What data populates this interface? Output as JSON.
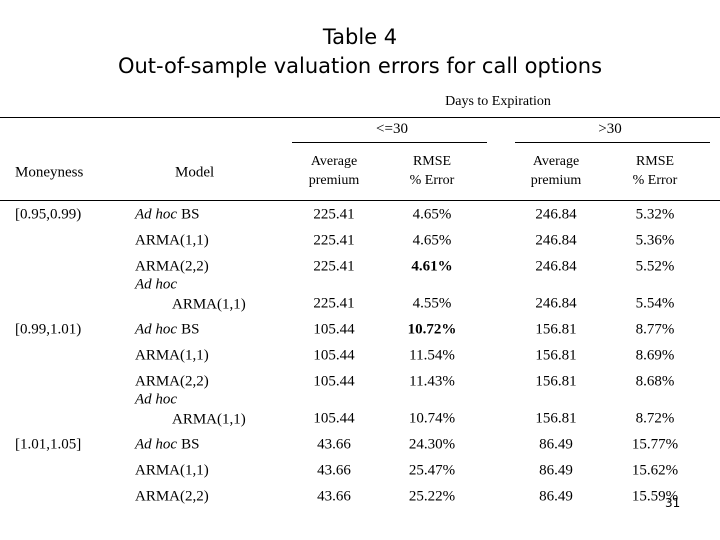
{
  "title": {
    "line1": "Table 4",
    "line2": "Out-of-sample valuation errors for call options"
  },
  "table": {
    "super_header": "Days to Expiration",
    "groups": [
      "<=30",
      ">30"
    ],
    "columns": {
      "moneyness": "Moneyness",
      "model": "Model",
      "metrics": [
        {
          "line1": "Average",
          "line2": "premium"
        },
        {
          "line1": "RMSE",
          "line2": "% Error"
        },
        {
          "line1": "Average",
          "line2": "premium"
        },
        {
          "line1": "RMSE",
          "line2": "% Error"
        }
      ]
    },
    "rows": [
      {
        "moneyness": "[0.95,0.99)",
        "model": {
          "italic": "Ad hoc",
          "text": "BS"
        },
        "cells": [
          {
            "text": "225.41"
          },
          {
            "text": "4.65%"
          },
          {
            "text": "246.84"
          },
          {
            "text": "5.32%"
          }
        ]
      },
      {
        "model": {
          "text": "ARMA(1,1)"
        },
        "cells": [
          {
            "text": "225.41"
          },
          {
            "text": "4.65%"
          },
          {
            "text": "246.84"
          },
          {
            "text": "5.36%"
          }
        ]
      },
      {
        "model": {
          "text": "ARMA(2,2)"
        },
        "cells": [
          {
            "text": "225.41"
          },
          {
            "text": "4.61%",
            "bold": true
          },
          {
            "text": "246.84"
          },
          {
            "text": "5.52%"
          }
        ]
      },
      {
        "model": {
          "italic": "Ad hoc",
          "text": "ARMA(1,1)",
          "wrap": true
        },
        "cells": [
          {
            "text": "225.41"
          },
          {
            "text": "4.55%"
          },
          {
            "text": "246.84"
          },
          {
            "text": "5.54%"
          }
        ]
      },
      {
        "moneyness": "[0.99,1.01)",
        "model": {
          "italic": "Ad hoc",
          "text": "BS"
        },
        "cells": [
          {
            "text": "105.44"
          },
          {
            "text": "10.72%",
            "bold": true
          },
          {
            "text": "156.81"
          },
          {
            "text": "8.77%"
          }
        ]
      },
      {
        "model": {
          "text": "ARMA(1,1)"
        },
        "cells": [
          {
            "text": "105.44"
          },
          {
            "text": "11.54%"
          },
          {
            "text": "156.81"
          },
          {
            "text": "8.69%"
          }
        ]
      },
      {
        "model": {
          "text": "ARMA(2,2)"
        },
        "cells": [
          {
            "text": "105.44"
          },
          {
            "text": "11.43%"
          },
          {
            "text": "156.81"
          },
          {
            "text": "8.68%"
          }
        ]
      },
      {
        "model": {
          "italic": "Ad hoc",
          "text": "ARMA(1,1)",
          "wrap": true
        },
        "cells": [
          {
            "text": "105.44"
          },
          {
            "text": "10.74%"
          },
          {
            "text": "156.81"
          },
          {
            "text": "8.72%"
          }
        ]
      },
      {
        "moneyness": "[1.01,1.05]",
        "model": {
          "italic": "Ad hoc",
          "text": "BS"
        },
        "cells": [
          {
            "text": "43.66"
          },
          {
            "text": "24.30%"
          },
          {
            "text": "86.49"
          },
          {
            "text": "15.77%"
          }
        ]
      },
      {
        "model": {
          "text": "ARMA(1,1)"
        },
        "cells": [
          {
            "text": "43.66"
          },
          {
            "text": "25.47%"
          },
          {
            "text": "86.49"
          },
          {
            "text": "15.62%"
          }
        ]
      },
      {
        "model": {
          "text": "ARMA(2,2)"
        },
        "cells": [
          {
            "text": "43.66"
          },
          {
            "text": "25.22%"
          },
          {
            "text": "86.49"
          },
          {
            "text": "15.59%"
          }
        ]
      }
    ]
  },
  "page_number": "31"
}
